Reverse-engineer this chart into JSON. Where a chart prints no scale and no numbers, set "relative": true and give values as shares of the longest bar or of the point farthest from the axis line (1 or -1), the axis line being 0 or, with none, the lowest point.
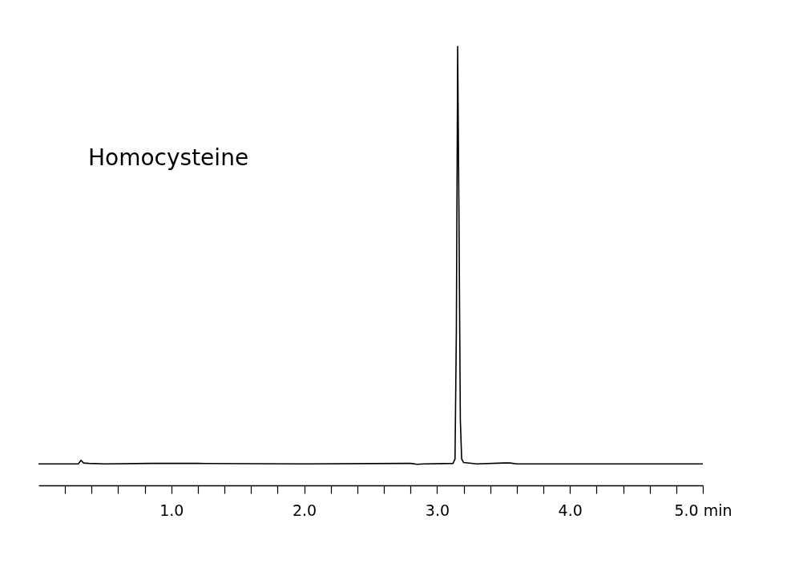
{
  "chart_data": {
    "type": "line",
    "relative": true,
    "annotations": [
      "Homocysteine"
    ],
    "x": [
      0,
      0.3,
      0.32,
      0.34,
      0.38,
      0.5,
      0.85,
      1.2,
      2.0,
      2.8,
      2.85,
      2.9,
      3.12,
      3.135,
      3.145,
      3.155,
      3.165,
      3.175,
      3.185,
      3.2,
      3.3,
      3.5,
      3.55,
      3.6,
      5.0
    ],
    "series": [
      {
        "color": "#000000",
        "values": [
          0.049,
          0.049,
          0.057,
          0.051,
          0.05,
          0.049,
          0.05,
          0.05,
          0.049,
          0.05,
          0.048,
          0.049,
          0.05,
          0.06,
          0.35,
          1.0,
          0.6,
          0.15,
          0.06,
          0.052,
          0.049,
          0.051,
          0.051,
          0.049,
          0.049
        ]
      }
    ],
    "xlim": [
      0,
      5
    ],
    "xticks": [
      {
        "value": 0.2,
        "label": null
      },
      {
        "value": 0.4,
        "label": null
      },
      {
        "value": 0.6,
        "label": null
      },
      {
        "value": 0.8,
        "label": null
      },
      {
        "value": 1,
        "label": "1.0"
      },
      {
        "value": 1.2,
        "label": null
      },
      {
        "value": 1.4,
        "label": null
      },
      {
        "value": 1.6,
        "label": null
      },
      {
        "value": 1.8,
        "label": null
      },
      {
        "value": 2,
        "label": "2.0"
      },
      {
        "value": 2.2,
        "label": null
      },
      {
        "value": 2.4,
        "label": null
      },
      {
        "value": 2.6,
        "label": null
      },
      {
        "value": 2.8,
        "label": null
      },
      {
        "value": 3,
        "label": "3.0"
      },
      {
        "value": 3.2,
        "label": null
      },
      {
        "value": 3.4,
        "label": null
      },
      {
        "value": 3.6,
        "label": null
      },
      {
        "value": 3.8,
        "label": null
      },
      {
        "value": 4,
        "label": "4.0"
      },
      {
        "value": 4.2,
        "label": null
      },
      {
        "value": 4.4,
        "label": null
      },
      {
        "value": 4.6,
        "label": null
      },
      {
        "value": 4.8,
        "label": null
      },
      {
        "value": 5,
        "label": "5.0 min"
      }
    ],
    "grid": false,
    "legend": false,
    "marker": "none",
    "line_style": "solid"
  }
}
